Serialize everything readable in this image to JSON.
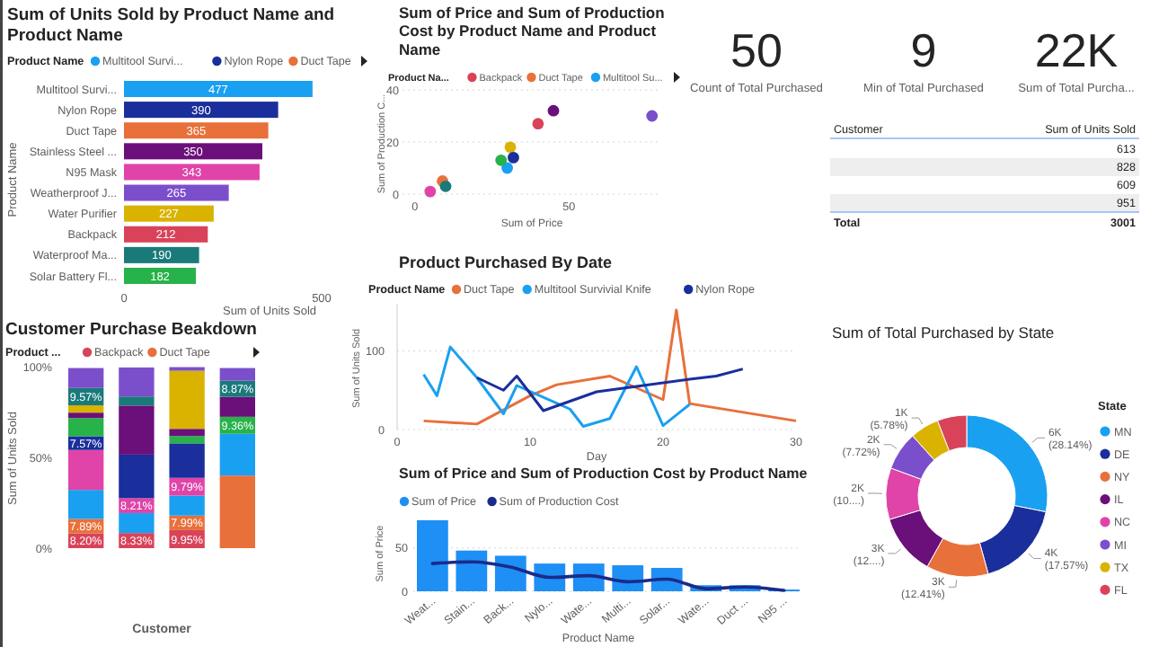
{
  "chart_data": [
    {
      "type": "bar",
      "orientation": "horizontal",
      "title": "Sum of Units Sold by Product Name and Product Name",
      "legend_title": "Product Name",
      "legend": "top left",
      "xlabel": "Sum of Units Sold",
      "ylabel": "Product Name",
      "categories": [
        "Multitool Survi...",
        "Nylon Rope",
        "Duct Tape",
        "Stainless Steel ...",
        "N95 Mask",
        "Weatherproof J...",
        "Water Purifier",
        "Backpack",
        "Waterproof Ma...",
        "Solar Battery Fl..."
      ],
      "xlim": [
        0,
        500
      ],
      "xticks": [
        0,
        500
      ],
      "data_labels": true,
      "series": [
        {
          "name": "Multitool Survi...",
          "color": "#1aa0f0",
          "values": [
            477,
            null,
            null,
            null,
            null,
            null,
            null,
            null,
            null,
            null
          ]
        },
        {
          "name": "Nylon Rope",
          "color": "#1a2e9c",
          "values": [
            null,
            390,
            null,
            null,
            null,
            null,
            null,
            null,
            null,
            null
          ]
        },
        {
          "name": "Duct Tape",
          "color": "#e8703a",
          "values": [
            null,
            null,
            365,
            null,
            null,
            null,
            null,
            null,
            null,
            null
          ]
        },
        {
          "color": "#6b0f7a",
          "values": [
            null,
            null,
            null,
            350,
            null,
            null,
            null,
            null,
            null,
            null
          ]
        },
        {
          "color": "#e044a8",
          "values": [
            null,
            null,
            null,
            null,
            343,
            null,
            null,
            null,
            null,
            null
          ]
        },
        {
          "color": "#7b4fcc",
          "values": [
            null,
            null,
            null,
            null,
            null,
            265,
            null,
            null,
            null,
            null
          ]
        },
        {
          "color": "#d9b300",
          "values": [
            null,
            null,
            null,
            null,
            null,
            null,
            227,
            null,
            null,
            null
          ]
        },
        {
          "color": "#d9435a",
          "values": [
            null,
            null,
            null,
            null,
            null,
            null,
            null,
            212,
            null,
            null
          ]
        },
        {
          "color": "#1a7a7a",
          "values": [
            null,
            null,
            null,
            null,
            null,
            null,
            null,
            null,
            190,
            null
          ]
        },
        {
          "color": "#27b24a",
          "values": [
            null,
            null,
            null,
            null,
            null,
            null,
            null,
            null,
            null,
            182
          ]
        }
      ]
    },
    {
      "type": "scatter",
      "title": "Sum of Price and Sum of Production Cost by Product Name and Product Name",
      "legend_title": "Product Na...",
      "legend": "top",
      "xlabel": "Sum of Price",
      "ylabel": "Sum of Production C...",
      "xlim": [
        -4,
        80
      ],
      "xticks": [
        0,
        50
      ],
      "ylim": [
        0,
        40
      ],
      "yticks": [
        0,
        20,
        40
      ],
      "grid": "y",
      "marker": "circle",
      "series": [
        {
          "name": "Backpack",
          "color": "#d9435a",
          "x": [
            40
          ],
          "values": [
            27
          ]
        },
        {
          "name": "Duct Tape",
          "color": "#e8703a",
          "x": [
            9
          ],
          "values": [
            5
          ]
        },
        {
          "name": "Multitool Su...",
          "color": "#1aa0f0",
          "x": [
            30
          ],
          "values": [
            10
          ]
        },
        {
          "color": "#e044a8",
          "x": [
            5
          ],
          "values": [
            1
          ]
        },
        {
          "color": "#1a7a7a",
          "x": [
            10
          ],
          "values": [
            3
          ]
        },
        {
          "color": "#27b24a",
          "x": [
            28
          ],
          "values": [
            13
          ]
        },
        {
          "color": "#d9b300",
          "x": [
            31
          ],
          "values": [
            18
          ]
        },
        {
          "color": "#1a2e9c",
          "x": [
            32
          ],
          "values": [
            14
          ]
        },
        {
          "color": "#6b0f7a",
          "x": [
            45
          ],
          "values": [
            32
          ]
        },
        {
          "color": "#7b4fcc",
          "x": [
            77
          ],
          "values": [
            30
          ]
        }
      ]
    },
    {
      "type": "other",
      "categories": [
        "Count of Total Purchased",
        "Min of Total Purchased",
        "Sum of Total Purcha..."
      ],
      "value_labels": [
        "50",
        "9",
        "22K"
      ]
    },
    {
      "type": "other",
      "xlabel": "Customer",
      "ylabel": "Sum of Units Sold",
      "categories": [
        null,
        null,
        null,
        null
      ],
      "values": [
        613,
        828,
        609,
        951
      ],
      "data_labels": true,
      "annotations": [
        "Total",
        "3001"
      ]
    },
    {
      "type": "bar",
      "stacked": true,
      "title": "Customer Purchase Beakdown",
      "legend_title": "Product ...",
      "legend": "top left",
      "xlabel": "Customer",
      "ylabel": "Sum of Units Sold",
      "categories": [
        null,
        null,
        null,
        null
      ],
      "ylim": [
        0,
        100
      ],
      "yticks": [
        {
          "value": 0,
          "label": "0%"
        },
        {
          "value": 50,
          "label": "50%"
        },
        {
          "value": 100,
          "label": "100%"
        }
      ],
      "series": [
        {
          "name": "Backpack",
          "color": "#d9435a",
          "values": [
            8.2,
            8.33,
            9.95,
            null
          ],
          "value_labels": [
            "8.20%",
            "8.33%",
            "9.95%",
            null
          ]
        },
        {
          "name": "Duct Tape",
          "color": "#e8703a",
          "values": [
            7.89,
            null,
            7.99,
            40
          ],
          "value_labels": [
            "7.89%",
            null,
            "7.99%",
            null
          ]
        },
        {
          "color": "#1aa0f0",
          "values": [
            16,
            11,
            11,
            23
          ]
        },
        {
          "color": "#e044a8",
          "values": [
            22,
            8.21,
            9.79,
            null
          ],
          "value_labels": [
            null,
            "8.21%",
            "9.79%",
            null
          ]
        },
        {
          "color": "#1a2e9c",
          "values": [
            7.57,
            24,
            19,
            null
          ],
          "value_labels": [
            "7.57%",
            null,
            null,
            null
          ]
        },
        {
          "color": "#27b24a",
          "values": [
            10,
            null,
            4,
            9.36
          ],
          "value_labels": [
            null,
            null,
            null,
            "9.36%"
          ]
        },
        {
          "color": "#6b0f7a",
          "values": [
            3,
            27,
            4,
            11
          ]
        },
        {
          "color": "#d9b300",
          "values": [
            4,
            null,
            32,
            null
          ]
        },
        {
          "color": "#1a7a7a",
          "values": [
            9.57,
            5,
            null,
            8.87
          ],
          "value_labels": [
            "9.57%",
            null,
            null,
            "8.87%"
          ]
        },
        {
          "color": "#7b4fcc",
          "values": [
            11,
            16,
            2,
            7
          ]
        }
      ]
    },
    {
      "type": "line",
      "title": "Product Purchased By Date",
      "legend_title": "Product Name",
      "legend": "top left",
      "xlabel": "Day",
      "ylabel": "Sum of Units Sold",
      "xlim": [
        0,
        30
      ],
      "xticks": [
        0,
        10,
        20,
        30
      ],
      "ylim": [
        0,
        160
      ],
      "yticks": [
        0,
        100
      ],
      "grid": "y",
      "series": [
        {
          "name": "Duct Tape",
          "color": "#e8703a",
          "x": [
            2,
            6,
            10,
            12,
            16,
            20,
            21,
            22,
            30
          ],
          "values": [
            11,
            7,
            43,
            57,
            68,
            38,
            152,
            33,
            11
          ]
        },
        {
          "name": "Multitool Survivial Knife",
          "color": "#1aa0f0",
          "x": [
            2,
            3,
            4,
            6,
            8,
            9,
            11,
            13,
            14,
            16,
            18,
            20,
            22
          ],
          "values": [
            70,
            43,
            105,
            66,
            20,
            56,
            41,
            26,
            4,
            14,
            80,
            5,
            32
          ]
        },
        {
          "name": "Nylon Rope",
          "color": "#1a2e9c",
          "x": [
            6,
            8,
            9,
            11,
            15,
            22,
            24,
            26
          ],
          "values": [
            66,
            50,
            68,
            24,
            48,
            64,
            68,
            77
          ]
        }
      ]
    },
    {
      "type": "bar",
      "title": "Sum of Price and Sum of Production Cost by Product Name",
      "legend": "top left",
      "xlabel": "Product Name",
      "ylabel": "Sum of Price",
      "categories": [
        "Weat...",
        "Stain...",
        "Back...",
        "Nylo...",
        "Wate...",
        "Multi...",
        "Solar...",
        "Wate...",
        "Duct ...",
        "N95 ..."
      ],
      "ylim": [
        0,
        85
      ],
      "yticks": [
        0,
        50
      ],
      "grid": "y",
      "series": [
        {
          "name": "Sum of Price",
          "type": "bar",
          "color": "#1e8ff5",
          "values": [
            82,
            47,
            41,
            32,
            32,
            30,
            27,
            7,
            7,
            2
          ]
        },
        {
          "name": "Sum of Production Cost",
          "type": "line",
          "color": "#1a2b8c",
          "values": [
            32,
            34,
            28,
            16,
            18,
            11,
            14,
            3,
            5,
            1
          ]
        }
      ]
    },
    {
      "type": "donut",
      "title": "Sum of Total Purchased by State",
      "legend_title": "State",
      "legend": "right",
      "categories": [
        "MN",
        "DE",
        "NY",
        "IL",
        "NC",
        "MI",
        "TX",
        "FL"
      ],
      "values": [
        28.14,
        17.57,
        12.41,
        12.2,
        10.3,
        7.72,
        5.78,
        5.88
      ],
      "colors": [
        "#1aa0f0",
        "#1a2e9c",
        "#e8703a",
        "#6b0f7a",
        "#e044a8",
        "#7b4fcc",
        "#d9b300",
        "#d9435a"
      ],
      "value_labels": [
        "6K (28.14%)",
        "4K (17.57%)",
        "3K (12.41%)",
        "3K (12....)",
        "2K (10....)",
        "2K (7.72%)",
        "1K (5.78%)",
        null
      ]
    }
  ]
}
